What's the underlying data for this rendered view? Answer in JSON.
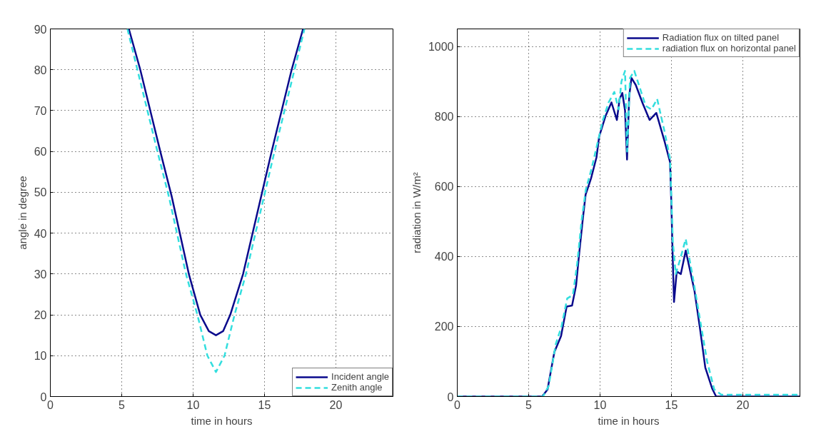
{
  "chart_data": [
    {
      "type": "line",
      "xlabel": "time in hours",
      "ylabel": "angle in degree",
      "xlim": [
        0,
        24
      ],
      "ylim": [
        0,
        90
      ],
      "xticks": [
        0,
        5,
        10,
        15,
        20
      ],
      "yticks": [
        0,
        10,
        20,
        30,
        40,
        50,
        60,
        70,
        80,
        90
      ],
      "grid": true,
      "legend": "bottom right",
      "series": [
        {
          "name": "Incident angle",
          "color": "#0a0a8c",
          "line_style": "solid",
          "x": [
            5.5,
            6.3,
            7.0,
            7.7,
            8.5,
            9.7,
            10.5,
            11.1,
            11.6,
            12.1,
            12.6,
            13.5,
            14.5,
            15.5,
            16.2,
            16.9,
            17.7
          ],
          "values": [
            90,
            80,
            70,
            60,
            49,
            30,
            20,
            16,
            15,
            16,
            20,
            30,
            45,
            60,
            70,
            80,
            90
          ]
        },
        {
          "name": "Zenith angle",
          "color": "#33dede",
          "line_style": "dashed",
          "x": [
            5.4,
            6.1,
            6.8,
            7.5,
            8.3,
            9.5,
            10.3,
            11.0,
            11.6,
            12.2,
            12.9,
            13.7,
            14.7,
            15.7,
            16.4,
            17.1,
            17.8
          ],
          "values": [
            90,
            80,
            70,
            60,
            49,
            30,
            20,
            10,
            6,
            10,
            20,
            30,
            45,
            60,
            70,
            80,
            90
          ]
        }
      ]
    },
    {
      "type": "line",
      "xlabel": "time in hours",
      "ylabel": "radiation in W/m²",
      "xlim": [
        0,
        24
      ],
      "ylim": [
        0,
        1050
      ],
      "xticks": [
        0,
        5,
        10,
        15,
        20
      ],
      "yticks": [
        0,
        200,
        400,
        600,
        800,
        1000
      ],
      "grid": true,
      "legend": "top right",
      "series": [
        {
          "name": "Radiation flux on tilted panel",
          "color": "#0a0a8c",
          "line_style": "solid",
          "x": [
            0,
            5.94,
            6.32,
            6.8,
            7.27,
            7.66,
            8.04,
            8.32,
            8.51,
            8.8,
            8.99,
            9.37,
            9.75,
            9.94,
            10.4,
            10.8,
            11.18,
            11.37,
            11.56,
            11.75,
            11.89,
            12.04,
            12.2,
            12.5,
            12.99,
            13.47,
            13.94,
            14.51,
            14.9,
            14.99,
            15.09,
            15.18,
            15.37,
            15.66,
            16.0,
            16.61,
            16.99,
            17.37,
            17.85,
            18.13,
            24
          ],
          "values": [
            0,
            0,
            20,
            127,
            173,
            257,
            260,
            317,
            397,
            510,
            577,
            623,
            683,
            743,
            803,
            840,
            790,
            850,
            867,
            817,
            677,
            857,
            910,
            890,
            837,
            790,
            810,
            730,
            670,
            557,
            397,
            270,
            357,
            350,
            417,
            303,
            197,
            83,
            23,
            0,
            0
          ]
        },
        {
          "name": "radiation flux on horizontal panel",
          "color": "#33dede",
          "line_style": "dashed",
          "x": [
            0,
            6.0,
            6.4,
            6.9,
            7.3,
            7.7,
            8.1,
            8.4,
            8.7,
            9.0,
            9.4,
            9.8,
            10.2,
            10.6,
            11.0,
            11.3,
            11.5,
            11.75,
            11.9,
            12.1,
            12.4,
            12.8,
            13.2,
            13.6,
            14.0,
            14.5,
            14.9,
            15.1,
            15.3,
            15.6,
            16.0,
            16.5,
            17.0,
            17.5,
            18.0,
            18.5,
            24
          ],
          "values": [
            0,
            0,
            30,
            150,
            200,
            280,
            290,
            380,
            500,
            590,
            650,
            720,
            790,
            840,
            870,
            820,
            900,
            930,
            700,
            910,
            930,
            880,
            830,
            820,
            850,
            760,
            680,
            440,
            350,
            390,
            450,
            340,
            220,
            100,
            20,
            5,
            5
          ]
        }
      ]
    }
  ]
}
